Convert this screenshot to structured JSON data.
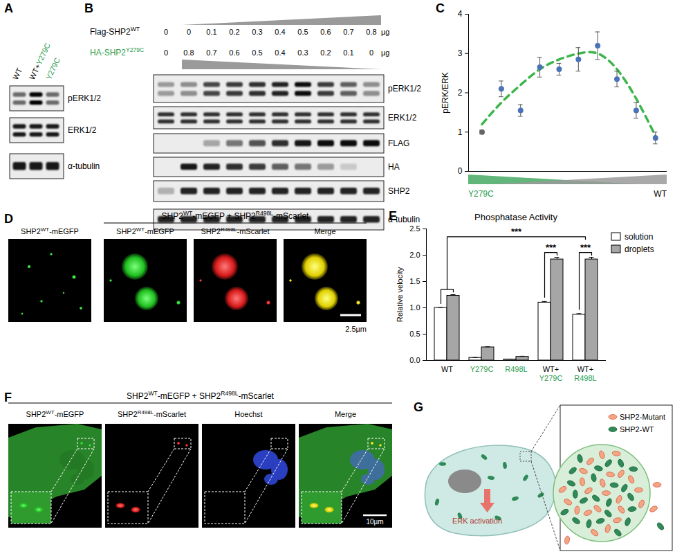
{
  "panel_labels": [
    "A",
    "B",
    "C",
    "D",
    "E",
    "F",
    "G"
  ],
  "mutant_color": "#2e9e4f",
  "mutant_texts": [
    "Y279C",
    "R498L"
  ],
  "panel_A": {
    "lanes": [
      [
        {
          "text": "WT"
        }
      ],
      [
        {
          "text": "WT+"
        },
        {
          "text": "Y279C",
          "color": "#2e9e4f"
        }
      ],
      [
        {
          "text": "Y279C",
          "color": "#2e9e4f"
        }
      ]
    ],
    "blots": [
      {
        "name": "pERK1/2",
        "bands": 2,
        "intensity": [
          0.55,
          1,
          0.55
        ]
      },
      {
        "name": "ERK1/2",
        "bands": 2,
        "intensity": [
          0.9,
          0.9,
          0.9
        ]
      },
      {
        "name": "α-tubulin",
        "bands": 1,
        "intensity": [
          0.9,
          0.9,
          0.9
        ]
      }
    ]
  },
  "panel_B": {
    "rows": [
      {
        "label": [
          {
            "text": "Flag-SHP2"
          },
          {
            "text": "WT",
            "sup": true
          }
        ],
        "amounts": [
          0,
          0,
          0.1,
          0.2,
          0.3,
          0.4,
          0.5,
          0.6,
          0.7,
          0.8
        ],
        "unit": "µg"
      },
      {
        "label": [
          {
            "text": "HA-SHP2",
            "color": "#2e9e4f"
          },
          {
            "text": "Y279C",
            "sup": true,
            "color": "#2e9e4f"
          }
        ],
        "amounts": [
          0,
          0.8,
          0.7,
          0.6,
          0.5,
          0.4,
          0.3,
          0.2,
          0.1,
          0
        ],
        "unit": "µg"
      }
    ],
    "blots": [
      {
        "name": "pERK1/2",
        "bands": 2,
        "intensity": [
          0.35,
          0.4,
          0.7,
          0.75,
          0.8,
          0.85,
          0.95,
          0.75,
          0.6,
          0.4
        ]
      },
      {
        "name": "ERK1/2",
        "bands": 2,
        "intensity": [
          0.8,
          0.8,
          0.8,
          0.8,
          0.8,
          0.8,
          0.8,
          0.8,
          0.8,
          0.8
        ]
      },
      {
        "name": "FLAG",
        "bands": 1,
        "intensity": [
          0,
          0,
          0.3,
          0.5,
          0.65,
          0.8,
          0.9,
          0.95,
          0.95,
          0.95
        ]
      },
      {
        "name": "HA",
        "bands": 1,
        "intensity": [
          0,
          0.9,
          0.85,
          0.8,
          0.75,
          0.6,
          0.5,
          0.35,
          0.15,
          0
        ]
      },
      {
        "name": "SHP2",
        "bands": 1,
        "intensity": [
          0.25,
          0.85,
          0.85,
          0.85,
          0.85,
          0.85,
          0.85,
          0.85,
          0.85,
          0.85
        ]
      },
      {
        "name": "α-tubulin",
        "bands": 1,
        "intensity": [
          0.85,
          0.85,
          0.85,
          0.85,
          0.85,
          0.85,
          0.85,
          0.85,
          0.85,
          0.85
        ]
      }
    ]
  },
  "chart_data": [
    {
      "type": "scatter",
      "ylabel": "pERK/ERK",
      "x": [
        1,
        2,
        3,
        4,
        5,
        6,
        7,
        8,
        9,
        10
      ],
      "xlim": [
        0.3,
        10.6
      ],
      "ylim": [
        0,
        4
      ],
      "yticks": [
        0,
        1,
        2,
        3,
        4
      ],
      "tick_labels": "y",
      "annotations": [
        {
          "text": "Y279C",
          "color": "#2e9e4f"
        },
        {
          "text": "WT",
          "color": "#000000"
        }
      ],
      "series": [
        {
          "type": "scatter",
          "marker": "circle",
          "values": [
            1.0,
            2.1,
            1.55,
            2.65,
            2.6,
            2.85,
            3.2,
            2.35,
            1.55,
            0.85
          ],
          "errors": [
            0.05,
            0.2,
            0.15,
            0.25,
            0.15,
            0.3,
            0.35,
            0.2,
            0.2,
            0.15
          ],
          "colors": [
            "#666666",
            "#4a72b8",
            "#4a72b8",
            "#4a72b8",
            "#4a72b8",
            "#4a72b8",
            "#4a72b8",
            "#4a72b8",
            "#4a72b8",
            "#4a72b8"
          ]
        },
        {
          "type": "line",
          "line_style": "dashed",
          "color": "#3cb54a",
          "values": [
            1.2,
            1.75,
            2.2,
            2.6,
            2.85,
            3.0,
            3.0,
            2.6,
            1.85,
            0.9
          ]
        }
      ]
    },
    {
      "type": "bar",
      "title": "Phosphatase Activity",
      "ylabel": "Relative velocity",
      "categories": [
        "WT",
        "Y279C",
        "R498L",
        "WT+Y279C",
        "WT+R498L"
      ],
      "ylim": [
        0,
        2.5
      ],
      "yticks": [
        {
          "value": 0,
          "label": "0.0"
        },
        0.5,
        {
          "value": 1,
          "label": "1.0"
        },
        1.5,
        {
          "value": 2,
          "label": "2.0"
        },
        2.5
      ],
      "legend": "top-right",
      "series": [
        {
          "name": "solution",
          "color": "#ffffff",
          "values": [
            1.0,
            0.05,
            0.02,
            1.1,
            0.87
          ],
          "errors": [
            0.01,
            0.005,
            0.005,
            0.02,
            0.02
          ]
        },
        {
          "name": "droplets",
          "color": "#a6a6a6",
          "values": [
            1.23,
            0.25,
            0.07,
            1.92,
            1.92
          ],
          "errors": [
            0.02,
            0.01,
            0.01,
            0.04,
            0.04
          ]
        }
      ],
      "significance": [
        {
          "from": {
            "category": "WT",
            "series": "solution"
          },
          "to": {
            "category": "WT",
            "series": "droplets"
          },
          "y": 1.35,
          "ends": [
            1.08,
            1.3
          ]
        },
        {
          "from": {
            "category": "WT"
          },
          "to": {
            "category": "WT+R498L"
          },
          "y": 2.35,
          "ends": [
            1.35,
            2.3
          ],
          "label": "***"
        },
        {
          "from": {
            "category": "WT+Y279C",
            "series": "solution"
          },
          "to": {
            "category": "WT+Y279C",
            "series": "droplets"
          },
          "y": 2.05,
          "ends": [
            1.2,
            2.0
          ],
          "label": "***"
        },
        {
          "from": {
            "category": "WT+R498L",
            "series": "solution"
          },
          "to": {
            "category": "WT+R498L",
            "series": "droplets"
          },
          "y": 2.05,
          "ends": [
            0.97,
            2.0
          ],
          "label": "***"
        }
      ]
    }
  ],
  "panel_D": {
    "single": [
      {
        "text": "SHP2"
      },
      {
        "text": "WT",
        "sup": true
      },
      {
        "text": "-mEGFP"
      }
    ],
    "group_title": [
      {
        "text": "SHP2"
      },
      {
        "text": "WT",
        "sup": true
      },
      {
        "text": "-mEGFP + SHP2"
      },
      {
        "text": "R498L",
        "sup": true
      },
      {
        "text": "-mScarlet"
      }
    ],
    "channels": [
      [
        {
          "text": "SHP2"
        },
        {
          "text": "WT",
          "sup": true
        },
        {
          "text": "-mEGFP"
        }
      ],
      [
        {
          "text": "SHP2"
        },
        {
          "text": "R498L",
          "sup": true
        },
        {
          "text": "-mScarlet"
        }
      ],
      [
        {
          "text": "Merge"
        }
      ]
    ],
    "scale_bar": "2.5µm"
  },
  "panel_F": {
    "group_title": [
      {
        "text": "SHP2"
      },
      {
        "text": "WT",
        "sup": true
      },
      {
        "text": "-mEGFP + SHP2"
      },
      {
        "text": "R498L",
        "sup": true
      },
      {
        "text": "-mScarlet"
      }
    ],
    "channels": [
      [
        {
          "text": "SHP2"
        },
        {
          "text": "WT",
          "sup": true
        },
        {
          "text": "-mEGFP"
        }
      ],
      [
        {
          "text": "SHP2"
        },
        {
          "text": "R498L",
          "sup": true
        },
        {
          "text": "-mScarlet"
        }
      ],
      [
        {
          "text": "Hoechst"
        }
      ],
      [
        {
          "text": "Merge"
        }
      ]
    ],
    "scale_bar": "10µm"
  },
  "panel_G": {
    "arrow_label": "ERK activation",
    "legend": [
      {
        "text": "SHP2-Mutant",
        "color": "#f4a582"
      },
      {
        "text": "SHP2-WT",
        "color": "#2e8b57"
      }
    ]
  }
}
